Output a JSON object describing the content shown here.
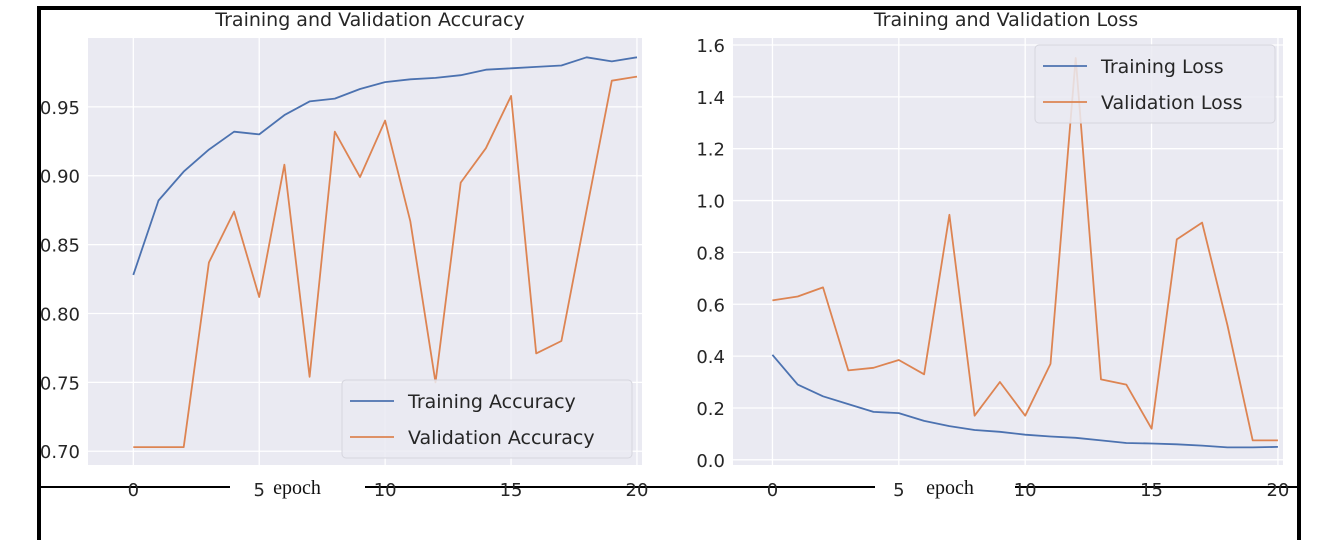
{
  "chart_data": [
    {
      "type": "line",
      "title": "Training and Validation Accuracy",
      "xlabel": "epoch",
      "ylabel": "",
      "xlim": [
        -1.8,
        20.2
      ],
      "ylim": [
        0.69,
        1.0
      ],
      "xticks": [
        0,
        5,
        10,
        15,
        20
      ],
      "yticks": [
        0.7,
        0.75,
        0.8,
        0.85,
        0.9,
        0.95
      ],
      "ytick_labels": [
        "0.70",
        "0.75",
        "0.80",
        "0.85",
        "0.90",
        "0.95"
      ],
      "grid": true,
      "legend_position": "lower-right",
      "x": [
        0,
        1,
        2,
        3,
        4,
        5,
        6,
        7,
        8,
        9,
        10,
        11,
        12,
        13,
        14,
        15,
        16,
        17,
        18,
        19,
        20
      ],
      "series": [
        {
          "name": "Training Accuracy",
          "color": "#4c72b0",
          "values": [
            0.828,
            0.882,
            0.903,
            0.919,
            0.932,
            0.93,
            0.944,
            0.954,
            0.956,
            0.963,
            0.968,
            0.97,
            0.971,
            0.973,
            0.977,
            0.978,
            0.979,
            0.98,
            0.986,
            0.983,
            0.986
          ]
        },
        {
          "name": "Validation Accuracy",
          "color": "#dd8452",
          "values": [
            0.703,
            0.703,
            0.703,
            0.837,
            0.874,
            0.812,
            0.908,
            0.754,
            0.932,
            0.899,
            0.94,
            0.867,
            0.75,
            0.895,
            0.92,
            0.958,
            0.771,
            0.78,
            0.875,
            0.969,
            0.972
          ]
        }
      ]
    },
    {
      "type": "line",
      "title": "Training and Validation Loss",
      "xlabel": "epoch",
      "ylabel": "",
      "xlim": [
        -1.56,
        20.2
      ],
      "ylim": [
        -0.02,
        1.627
      ],
      "xticks": [
        0,
        5,
        10,
        15,
        20
      ],
      "yticks": [
        0.0,
        0.2,
        0.4,
        0.6,
        0.8,
        1.0,
        1.2,
        1.4,
        1.6
      ],
      "ytick_labels": [
        "0.0",
        "0.2",
        "0.4",
        "0.6",
        "0.8",
        "1.0",
        "1.2",
        "1.4",
        "1.6"
      ],
      "grid": true,
      "legend_position": "upper-right",
      "x": [
        0,
        1,
        2,
        3,
        4,
        5,
        6,
        7,
        8,
        9,
        10,
        11,
        12,
        13,
        14,
        15,
        16,
        17,
        18,
        19,
        20
      ],
      "series": [
        {
          "name": "Training Loss",
          "color": "#4c72b0",
          "values": [
            0.405,
            0.29,
            0.245,
            0.215,
            0.185,
            0.18,
            0.15,
            0.13,
            0.115,
            0.108,
            0.097,
            0.09,
            0.085,
            0.075,
            0.065,
            0.063,
            0.06,
            0.055,
            0.048,
            0.048,
            0.05
          ]
        },
        {
          "name": "Validation Loss",
          "color": "#dd8452",
          "values": [
            0.615,
            0.63,
            0.665,
            0.345,
            0.355,
            0.385,
            0.33,
            0.945,
            0.17,
            0.3,
            0.17,
            0.37,
            1.55,
            0.31,
            0.29,
            0.12,
            0.85,
            0.915,
            0.52,
            0.075,
            0.075
          ]
        }
      ]
    }
  ]
}
